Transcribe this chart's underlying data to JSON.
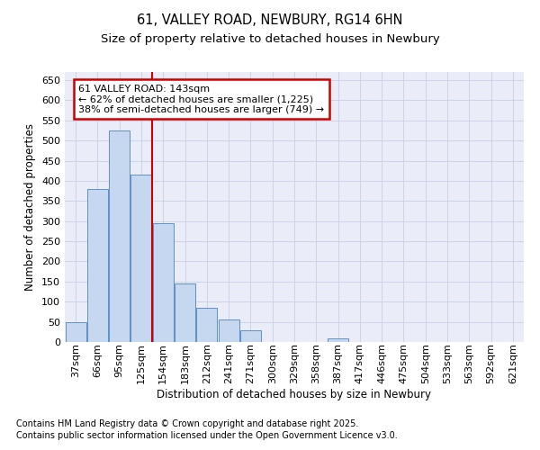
{
  "title": "61, VALLEY ROAD, NEWBURY, RG14 6HN",
  "subtitle": "Size of property relative to detached houses in Newbury",
  "xlabel": "Distribution of detached houses by size in Newbury",
  "ylabel": "Number of detached properties",
  "categories": [
    "37sqm",
    "66sqm",
    "95sqm",
    "125sqm",
    "154sqm",
    "183sqm",
    "212sqm",
    "241sqm",
    "271sqm",
    "300sqm",
    "329sqm",
    "358sqm",
    "387sqm",
    "417sqm",
    "446sqm",
    "475sqm",
    "504sqm",
    "533sqm",
    "563sqm",
    "592sqm",
    "621sqm"
  ],
  "values": [
    50,
    380,
    525,
    415,
    295,
    145,
    85,
    55,
    28,
    0,
    0,
    0,
    10,
    0,
    0,
    0,
    0,
    0,
    0,
    0,
    0
  ],
  "bar_color": "#c5d8f0",
  "bar_edge_color": "#6090c8",
  "property_line_x": 3.5,
  "property_label": "61 VALLEY ROAD: 143sqm",
  "annotation_line1": "← 62% of detached houses are smaller (1,225)",
  "annotation_line2": "38% of semi-detached houses are larger (749) →",
  "annotation_box_color": "#ffffff",
  "annotation_box_edge_color": "#cc0000",
  "property_line_color": "#cc0000",
  "ylim": [
    0,
    670
  ],
  "yticks": [
    0,
    50,
    100,
    150,
    200,
    250,
    300,
    350,
    400,
    450,
    500,
    550,
    600,
    650
  ],
  "grid_color": "#c8d0e8",
  "background_color": "#eaecf8",
  "footnote1": "Contains HM Land Registry data © Crown copyright and database right 2025.",
  "footnote2": "Contains public sector information licensed under the Open Government Licence v3.0.",
  "title_fontsize": 10.5,
  "subtitle_fontsize": 9.5,
  "axis_fontsize": 8.5,
  "tick_fontsize": 8,
  "footnote_fontsize": 7
}
